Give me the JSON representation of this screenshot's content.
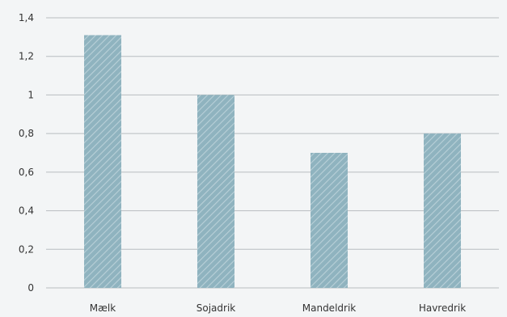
{
  "chart_data": {
    "type": "bar",
    "categories": [
      "Mælk",
      "Sojadrik",
      "Mandeldrik",
      "Havredrik"
    ],
    "values": [
      1.31,
      1.0,
      0.7,
      0.8
    ],
    "ylim": [
      0,
      1.4
    ],
    "yticks": [
      0,
      0.2,
      0.4,
      0.6,
      0.8,
      1,
      1.2,
      1.4
    ],
    "ytick_labels": [
      "0",
      "0,2",
      "0,4",
      "0,6",
      "0,8",
      "1",
      "1,2",
      "1,4"
    ],
    "title": "",
    "xlabel": "",
    "ylabel": "",
    "grid": true,
    "legend": "none",
    "colors": {
      "bar": "#8fb3bf",
      "bar_hatch": "#b9d0d8",
      "grid": "#b8bdc0",
      "background": "#f3f5f6",
      "text": "#333333"
    }
  }
}
